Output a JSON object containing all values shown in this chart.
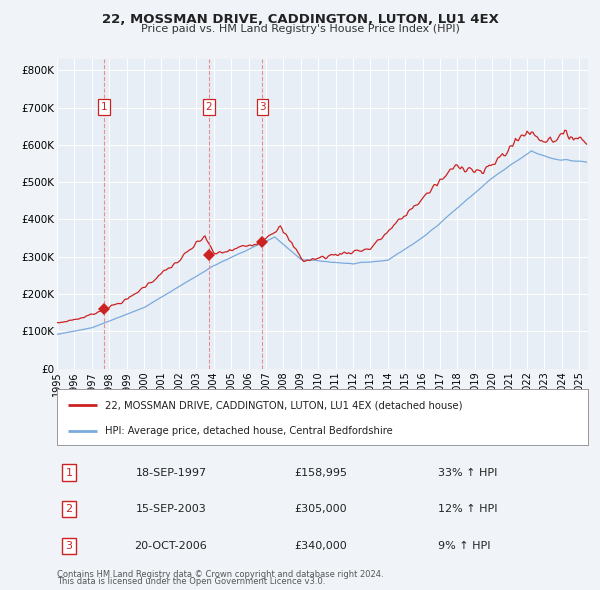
{
  "title": "22, MOSSMAN DRIVE, CADDINGTON, LUTON, LU1 4EX",
  "subtitle": "Price paid vs. HM Land Registry's House Price Index (HPI)",
  "red_label": "22, MOSSMAN DRIVE, CADDINGTON, LUTON, LU1 4EX (detached house)",
  "blue_label": "HPI: Average price, detached house, Central Bedfordshire",
  "background_color": "#f0f4f8",
  "plot_bg": "#e8eef6",
  "grid_color": "#ffffff",
  "red_color": "#cc2222",
  "blue_color": "#7aaadd",
  "transactions": [
    {
      "num": 1,
      "date_label": "18-SEP-1997",
      "date_x": 1997.71,
      "price": 158995,
      "pct": "33%",
      "dir": "↑"
    },
    {
      "num": 2,
      "date_label": "15-SEP-2003",
      "date_x": 2003.71,
      "price": 305000,
      "pct": "12%",
      "dir": "↑"
    },
    {
      "num": 3,
      "date_label": "20-OCT-2006",
      "date_x": 2006.8,
      "price": 340000,
      "pct": "9%",
      "dir": "↑"
    }
  ],
  "footer1": "Contains HM Land Registry data © Crown copyright and database right 2024.",
  "footer2": "This data is licensed under the Open Government Licence v3.0.",
  "xlim": [
    1995.0,
    2025.5
  ],
  "ylim": [
    0,
    830000
  ],
  "yticks": [
    0,
    100000,
    200000,
    300000,
    400000,
    500000,
    600000,
    700000,
    800000
  ],
  "ytick_labels": [
    "£0",
    "£100K",
    "£200K",
    "£300K",
    "£400K",
    "£500K",
    "£600K",
    "£700K",
    "£800K"
  ],
  "xticks": [
    1995,
    1996,
    1997,
    1998,
    1999,
    2000,
    2001,
    2002,
    2003,
    2004,
    2005,
    2006,
    2007,
    2008,
    2009,
    2010,
    2011,
    2012,
    2013,
    2014,
    2015,
    2016,
    2017,
    2018,
    2019,
    2020,
    2021,
    2022,
    2023,
    2024,
    2025
  ]
}
